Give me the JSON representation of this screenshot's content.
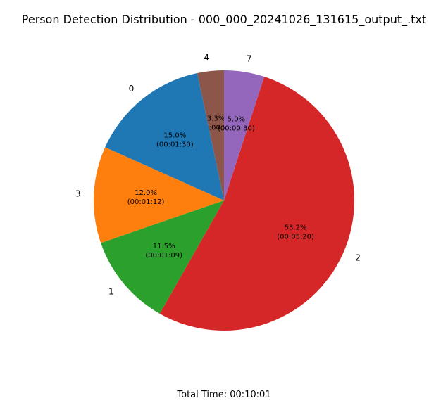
{
  "chart_data": {
    "type": "pie",
    "title": "Person Detection Distribution - 000_000_20241026_131615_output_.txt",
    "categories": [
      "4",
      "0",
      "3",
      "1",
      "2",
      "7"
    ],
    "values": [
      3.3,
      15.0,
      12.0,
      11.5,
      53.2,
      5.0
    ],
    "percent_labels": [
      "3.3%",
      "15.0%",
      "12.0%",
      "11.5%",
      "53.2%",
      "5.0%"
    ],
    "time_labels": [
      "(00:00:20)",
      "(00:01:30)",
      "(00:01:12)",
      "(00:01:09)",
      "(00:05:20)",
      "(00:00:30)"
    ],
    "colors": [
      "#8c564b",
      "#1f77b4",
      "#ff7f0e",
      "#2ca02c",
      "#d62728",
      "#9467bd"
    ],
    "start_angle_deg": 90,
    "direction": "counterclockwise"
  },
  "footer": {
    "total_time": "Total Time: 00:10:01"
  }
}
